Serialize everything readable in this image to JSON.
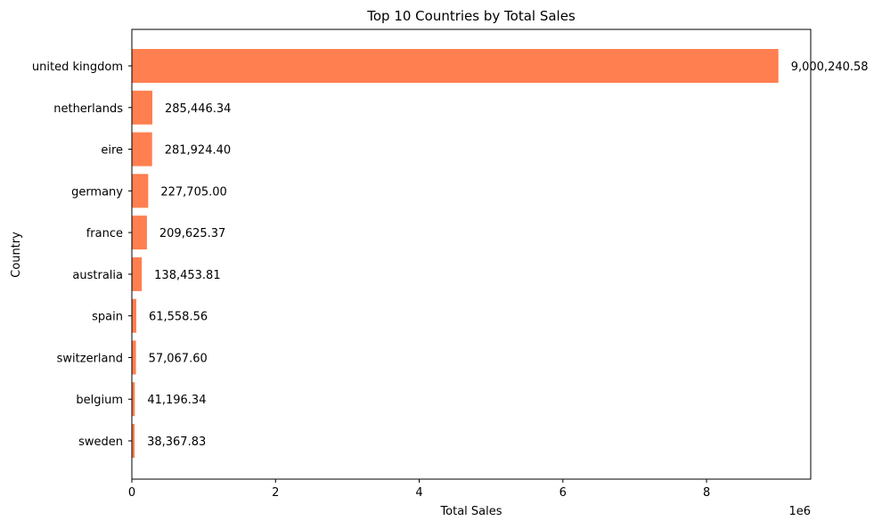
{
  "chart_data": {
    "type": "bar",
    "orientation": "horizontal",
    "title": "Top 10 Countries by Total Sales",
    "xlabel": "Total Sales",
    "ylabel": "Country",
    "x_offset_label": "1e6",
    "x_scale": 1000000,
    "xlim": [
      0,
      9450000
    ],
    "x_ticks": [
      0,
      2,
      4,
      6,
      8
    ],
    "grid": false,
    "legend": "none",
    "bar_color": "#ff7f50",
    "categories": [
      "united kingdom",
      "netherlands",
      "eire",
      "germany",
      "france",
      "australia",
      "spain",
      "switzerland",
      "belgium",
      "sweden"
    ],
    "values": [
      9000240.58,
      285446.34,
      281924.4,
      227705.0,
      209625.37,
      138453.81,
      61558.56,
      57067.6,
      41196.34,
      38367.83
    ],
    "value_labels": [
      "9,000,240.58",
      "285,446.34",
      "281,924.40",
      "227,705.00",
      "209,625.37",
      "138,453.81",
      "61,558.56",
      "57,067.60",
      "41,196.34",
      "38,367.83"
    ]
  }
}
